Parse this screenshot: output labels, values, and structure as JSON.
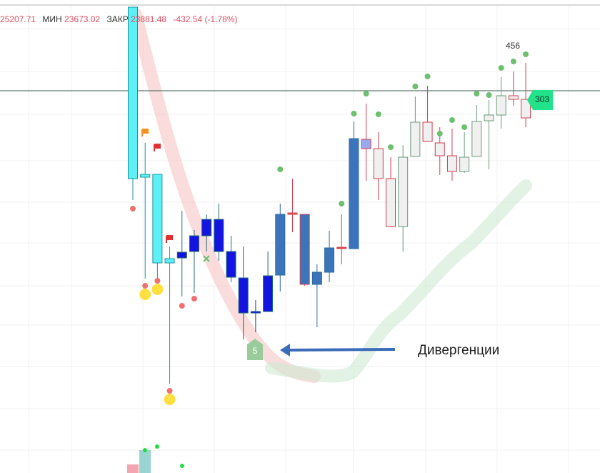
{
  "header": {
    "high": "25207.71",
    "low_label": "МИН",
    "low": "23673.02",
    "close_label": "ЗАКР",
    "close": "23881.48",
    "change": "-432.54 (-1.78%)"
  },
  "chart_data": {
    "type": "candlestick",
    "ylim": [
      18910,
      25530
    ],
    "open": [
      25430,
      23090,
      23090,
      21910,
      21920,
      22010,
      22230,
      22460,
      22010,
      21640,
      21160,
      21170,
      21680,
      22540,
      22530,
      21550,
      21720,
      22060,
      22050,
      23580,
      23450,
      23030,
      22360,
      23340,
      23820,
      23530,
      23350,
      23130,
      23340,
      23840,
      23920,
      24190,
      24140
    ],
    "high": [
      25430,
      23530,
      23090,
      22080,
      22580,
      22310,
      22530,
      22680,
      22230,
      22080,
      21330,
      22010,
      22680,
      23030,
      22530,
      21830,
      22300,
      22530,
      23830,
      24080,
      23680,
      23330,
      23500,
      24180,
      24330,
      23750,
      23730,
      23680,
      24060,
      24130,
      24450,
      24530,
      24650
    ],
    "low": [
      22730,
      21630,
      21580,
      20160,
      21380,
      21430,
      22010,
      21880,
      21580,
      20780,
      20880,
      21170,
      21450,
      22280,
      21530,
      20950,
      21580,
      21830,
      22050,
      23000,
      22730,
      22350,
      22010,
      23340,
      23550,
      23080,
      23000,
      23110,
      23340,
      23160,
      23730,
      24050,
      23750
    ],
    "close": [
      23030,
      23050,
      21850,
      21850,
      22000,
      22230,
      22460,
      22010,
      21650,
      21150,
      21160,
      21670,
      22530,
      22540,
      21550,
      21720,
      22060,
      22060,
      23590,
      23450,
      23030,
      22360,
      23330,
      23820,
      23550,
      23350,
      23130,
      23330,
      23830,
      23920,
      24190,
      24140,
      23880
    ],
    "fill": [
      "#5ef0f7",
      "#5ef0f7",
      "#5ef0f7",
      "#5ef0f7",
      "#1414e0",
      "#1414e0",
      "#1414e0",
      "#1414e0",
      "#1414e0",
      "#1414e0",
      "#1414e0",
      "#1414e0",
      "#3c74bc",
      "#e05060",
      "#3c74bc",
      "#3c74bc",
      "#3c74bc",
      "#e05060",
      "#3c74bc",
      "#9aa8f0",
      "#f0f0f0",
      "#f0f0f0",
      "#f0f0f0",
      "#f0f0f0",
      "#f0f0f0",
      "#f0f0f0",
      "#f0f0f0",
      "#f0f0f0",
      "#f0f0f0",
      "#f0f0f0",
      "#f0f0f0",
      "#f0f0f0",
      "#f0f0f0"
    ],
    "stroke": [
      "#1a9aa0",
      "#1a9aa0",
      "#1a9aa0",
      "#1a9aa0",
      "#1a6a70",
      "#1a6a70",
      "#1a6a70",
      "#1a6a70",
      "#1a6a70",
      "#1a6a70",
      "#1a4a90",
      "#1a6a70",
      "#2a6a9a",
      "#d04050",
      "#d04050",
      "#2a6a9a",
      "#2a6a9a",
      "#d04050",
      "#2a6a9a",
      "#d04050",
      "#d04050",
      "#d04050",
      "#6a9a7a",
      "#6a9a7a",
      "#d04050",
      "#d04050",
      "#d04050",
      "#6a9a7a",
      "#6a9a7a",
      "#6a9a7a",
      "#6a9a7a",
      "#d04050",
      "#d04050"
    ],
    "dots_high": {
      "color": "#6cc070",
      "values": [
        null,
        null,
        null,
        null,
        null,
        null,
        null,
        null,
        null,
        null,
        null,
        null,
        23160,
        null,
        null,
        null,
        null,
        22680,
        23940,
        24220,
        23930,
        23470,
        null,
        24320,
        24460,
        23660,
        23850,
        23750,
        24220,
        24200,
        24580,
        24670,
        24770
      ]
    },
    "dots_low": {
      "color": "#f07070",
      "values": [
        22610,
        21530,
        21600,
        20060,
        21250,
        21350,
        null,
        null,
        null,
        null,
        null,
        null,
        null,
        null,
        null,
        null,
        null,
        null,
        null,
        null,
        null,
        null,
        null,
        null,
        null,
        null,
        null,
        null,
        null,
        null,
        null,
        null,
        null
      ]
    },
    "dots_extreme": {
      "color": "#ffe040",
      "values": [
        null,
        21410,
        21480,
        19940,
        null,
        null,
        null,
        null,
        null,
        null,
        null,
        null,
        null,
        null,
        null,
        null,
        null,
        null,
        null,
        null,
        null,
        null,
        null,
        null,
        null,
        null,
        null,
        null,
        null,
        null,
        null,
        null,
        null
      ]
    },
    "annotations": {
      "top_count": "456",
      "price_badge": "303",
      "divergence_badge": "5",
      "divergence_label": "Дивергенции"
    }
  }
}
